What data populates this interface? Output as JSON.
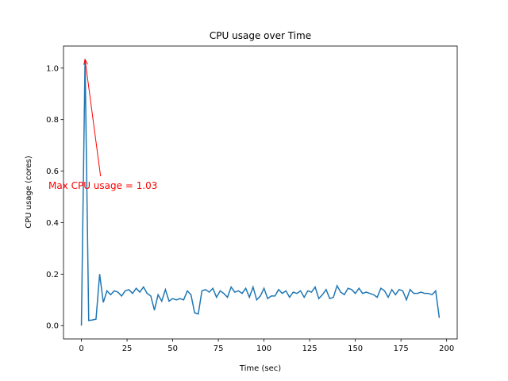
{
  "chart_data": {
    "type": "line",
    "title": "CPU usage over Time",
    "xlabel": "Time (sec)",
    "ylabel": "CPU usage (cores)",
    "x": [
      0,
      2,
      4,
      6,
      8,
      10,
      12,
      14,
      16,
      18,
      20,
      22,
      24,
      26,
      28,
      30,
      32,
      34,
      36,
      38,
      40,
      42,
      44,
      46,
      48,
      50,
      52,
      54,
      56,
      58,
      60,
      62,
      64,
      66,
      68,
      70,
      72,
      74,
      76,
      78,
      80,
      82,
      84,
      86,
      88,
      90,
      92,
      94,
      96,
      98,
      100,
      102,
      104,
      106,
      108,
      110,
      112,
      114,
      116,
      118,
      120,
      122,
      124,
      126,
      128,
      130,
      132,
      134,
      136,
      138,
      140,
      142,
      144,
      146,
      148,
      150,
      152,
      154,
      156,
      158,
      160,
      162,
      164,
      166,
      168,
      170,
      172,
      174,
      176,
      178,
      180,
      182,
      184,
      186,
      188,
      190,
      192,
      194,
      196
    ],
    "series": [
      {
        "color": "#1f77b4",
        "values": [
          0,
          1.034,
          0.02,
          0.022,
          0.025,
          0.2,
          0.09,
          0.135,
          0.12,
          0.135,
          0.13,
          0.115,
          0.135,
          0.14,
          0.125,
          0.145,
          0.13,
          0.15,
          0.125,
          0.115,
          0.06,
          0.12,
          0.095,
          0.14,
          0.095,
          0.105,
          0.1,
          0.105,
          0.1,
          0.135,
          0.12,
          0.05,
          0.045,
          0.135,
          0.14,
          0.13,
          0.145,
          0.11,
          0.135,
          0.125,
          0.11,
          0.15,
          0.13,
          0.135,
          0.125,
          0.145,
          0.11,
          0.15,
          0.1,
          0.115,
          0.145,
          0.105,
          0.115,
          0.115,
          0.14,
          0.125,
          0.135,
          0.11,
          0.13,
          0.125,
          0.135,
          0.11,
          0.135,
          0.13,
          0.15,
          0.105,
          0.12,
          0.14,
          0.105,
          0.11,
          0.155,
          0.13,
          0.12,
          0.145,
          0.14,
          0.125,
          0.145,
          0.125,
          0.13,
          0.125,
          0.12,
          0.11,
          0.145,
          0.135,
          0.11,
          0.14,
          0.12,
          0.14,
          0.135,
          0.1,
          0.14,
          0.125,
          0.125,
          0.13,
          0.125,
          0.125,
          0.12,
          0.135,
          0.03
        ]
      }
    ],
    "xlim": [
      -9.8,
      205.8
    ],
    "ylim": [
      -0.0517,
      1.0857
    ],
    "xticks": [
      0,
      25,
      50,
      75,
      100,
      125,
      150,
      175,
      200
    ],
    "yticks": [
      {
        "value": 0,
        "label": "0.0"
      },
      0.2,
      0.4,
      0.6,
      0.8,
      {
        "value": 1,
        "label": "1.0"
      }
    ],
    "annotation": {
      "text": "Max CPU usage = 1.03",
      "xy": [
        2,
        1.034
      ],
      "xytext": [
        10.5,
        0.58
      ],
      "color": "red"
    }
  }
}
